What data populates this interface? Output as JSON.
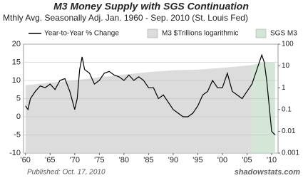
{
  "chart_data": {
    "type": "line",
    "title": "M3 Money Supply with SGS Continuation",
    "subtitle": "Mthly Avg. Seasonally Adj. Jan. 1960 - Sep. 2010  (St. Louis Fed)",
    "footnote": "Published: Oct. 17, 2010",
    "source": "shadowstats.com",
    "xlim": [
      1959.6,
      2011.3
    ],
    "xticks": [
      {
        "value": 1960,
        "label": "'60"
      },
      {
        "value": 1965,
        "label": "'65"
      },
      {
        "value": 1970,
        "label": "'70"
      },
      {
        "value": 1975,
        "label": "'75"
      },
      {
        "value": 1980,
        "label": "'80"
      },
      {
        "value": 1985,
        "label": "'85"
      },
      {
        "value": 1990,
        "label": "'90"
      },
      {
        "value": 1995,
        "label": "'95"
      },
      {
        "value": 2000,
        "label": "'00"
      },
      {
        "value": 2005,
        "label": "'05"
      },
      {
        "value": 2010,
        "label": "'10"
      }
    ],
    "ylim": [
      -10,
      20
    ],
    "yticks": [
      -10,
      -5,
      0,
      5,
      10,
      15,
      20
    ],
    "y2lim": [
      0.001,
      100
    ],
    "y2ticks": [
      0.001,
      0.01,
      0.1,
      1,
      10,
      100
    ],
    "y2scale": "log",
    "grid": true,
    "series": [
      {
        "name": "M3 $Trillions logarithmic",
        "kind": "area",
        "axis": "y2",
        "color": "#dcdcdc",
        "x": [
          1960,
          1965,
          1970,
          1975,
          1980,
          1985,
          1990,
          1995,
          2000,
          2006
        ],
        "values": [
          1.3,
          1.7,
          2.2,
          3.0,
          4.0,
          5.2,
          6.3,
          6.8,
          8.2,
          11
        ]
      },
      {
        "name": "SGS M3",
        "kind": "area",
        "axis": "y2",
        "color": "#d4e7d6",
        "x": [
          2006,
          2007,
          2008,
          2009,
          2010,
          2010.7
        ],
        "values": [
          11,
          12.5,
          14,
          14.5,
          14.2,
          14
        ]
      },
      {
        "name": "Year-to-Year % Change",
        "kind": "line",
        "color": "#000000",
        "x": [
          1960,
          1960.5,
          1961,
          1962,
          1963,
          1964,
          1965,
          1966,
          1967,
          1968,
          1969,
          1970,
          1970.5,
          1971,
          1971.5,
          1972,
          1973,
          1974,
          1975,
          1976,
          1977,
          1978,
          1979,
          1980,
          1981,
          1982,
          1983,
          1984,
          1985,
          1986,
          1987,
          1988,
          1989,
          1990,
          1991,
          1992,
          1993,
          1994,
          1995,
          1996,
          1997,
          1998,
          1999,
          2000,
          2001,
          2002,
          2003,
          2004,
          2005,
          2006,
          2007,
          2008,
          2008.5,
          2009,
          2009.5,
          2010,
          2010.7
        ],
        "values": [
          3,
          2,
          5,
          7,
          8.5,
          8,
          9,
          7.5,
          10,
          10.5,
          7,
          2,
          5,
          13,
          16.5,
          13,
          12,
          9,
          10,
          12,
          12.5,
          11.5,
          11,
          10,
          11.5,
          10,
          11,
          10,
          8,
          8,
          5,
          6,
          4,
          2,
          1,
          0,
          0,
          1,
          3,
          6,
          7,
          10,
          8,
          8,
          12,
          7,
          6,
          5,
          7,
          9,
          13,
          17,
          15,
          10,
          3,
          -4,
          -5
        ]
      }
    ]
  }
}
